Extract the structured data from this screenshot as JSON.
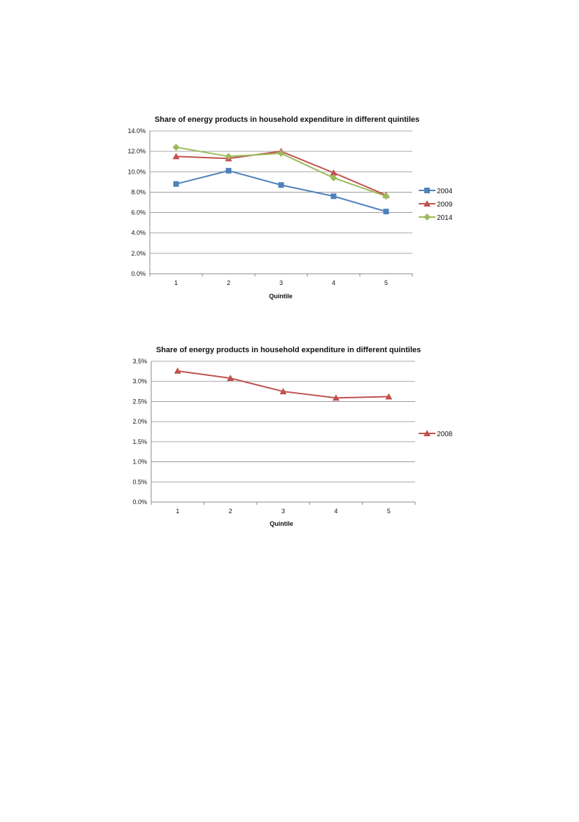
{
  "chart_data": [
    {
      "type": "line",
      "title": "Share of energy products in household expenditure in different quintiles",
      "xlabel": "Quintile",
      "ylabel": "",
      "categories": [
        "1",
        "2",
        "3",
        "4",
        "5"
      ],
      "ylim": [
        0,
        0.14
      ],
      "ytick_step": 0.02,
      "ytick_labels": [
        "0.0%",
        "2.0%",
        "4.0%",
        "6.0%",
        "8.0%",
        "10.0%",
        "12.0%",
        "14.0%"
      ],
      "grid": true,
      "legend_position": "right",
      "series": [
        {
          "name": "2004",
          "color": "#4f81bd",
          "marker": "square",
          "values": [
            0.088,
            0.101,
            0.087,
            0.076,
            0.061
          ]
        },
        {
          "name": "2009",
          "color": "#c0504d",
          "marker": "triangle",
          "values": [
            0.115,
            0.113,
            0.12,
            0.099,
            0.077
          ]
        },
        {
          "name": "2014",
          "color": "#9bbb59",
          "marker": "diamond",
          "values": [
            0.124,
            0.115,
            0.118,
            0.094,
            0.076
          ]
        }
      ]
    },
    {
      "type": "line",
      "title": "Share of energy products in household expenditure in different quintiles",
      "xlabel": "Quintile",
      "ylabel": "",
      "categories": [
        "1",
        "2",
        "3",
        "4",
        "5"
      ],
      "ylim": [
        0,
        0.035
      ],
      "ytick_step": 0.005,
      "ytick_labels": [
        "0.0%",
        "0.5%",
        "1.0%",
        "1.5%",
        "2.0%",
        "2.5%",
        "3.0%",
        "3.5%"
      ],
      "grid": true,
      "legend_position": "right",
      "series": [
        {
          "name": "2008",
          "color": "#c0504d",
          "marker": "triangle",
          "values": [
            0.0326,
            0.0308,
            0.0275,
            0.0259,
            0.0262
          ]
        }
      ]
    }
  ]
}
